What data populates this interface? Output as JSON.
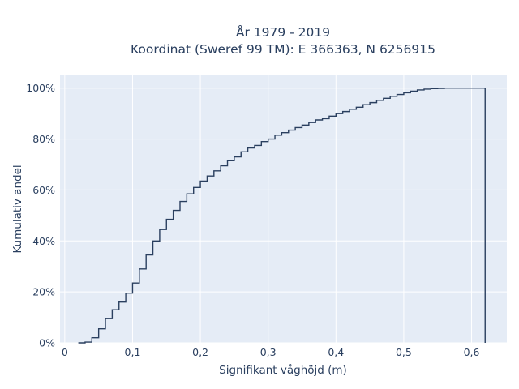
{
  "chart_data": {
    "type": "line",
    "title_lines": [
      "År 1979 - 2019",
      "Koordinat (Sweref 99 TM): E 366363, N 6256915"
    ],
    "xlabel": "Signifikant våghöjd (m)",
    "ylabel": "Kumulativ andel",
    "xlim": [
      -0.007,
      0.652
    ],
    "ylim": [
      0,
      105
    ],
    "xticks": [
      0,
      0.1,
      0.2,
      0.3,
      0.4,
      0.5,
      0.6
    ],
    "xtick_labels": [
      "0",
      "0,1",
      "0,2",
      "0,3",
      "0,4",
      "0,5",
      "0,6"
    ],
    "yticks": [
      0,
      20,
      40,
      60,
      80,
      100
    ],
    "ytick_labels": [
      "0%",
      "20%",
      "40%",
      "60%",
      "80%",
      "100%"
    ],
    "grid": true,
    "style": "step",
    "colors": {
      "line": "#2a3f5f",
      "plot_bg": "#e5ecf6",
      "grid": "#ffffff"
    },
    "series": [
      {
        "x": [
          0.02,
          0.03,
          0.04,
          0.05,
          0.06,
          0.07,
          0.08,
          0.09,
          0.1,
          0.11,
          0.12,
          0.13,
          0.14,
          0.15,
          0.16,
          0.17,
          0.18,
          0.19,
          0.2,
          0.21,
          0.22,
          0.23,
          0.24,
          0.25,
          0.26,
          0.27,
          0.28,
          0.29,
          0.3,
          0.31,
          0.32,
          0.33,
          0.34,
          0.35,
          0.36,
          0.37,
          0.38,
          0.39,
          0.4,
          0.41,
          0.42,
          0.43,
          0.44,
          0.45,
          0.46,
          0.47,
          0.48,
          0.49,
          0.5,
          0.51,
          0.52,
          0.53,
          0.54,
          0.55,
          0.56,
          0.57,
          0.58,
          0.59,
          0.6,
          0.62
        ],
        "y": [
          0,
          0.3,
          2,
          5.5,
          9.5,
          13,
          16,
          19.5,
          23.5,
          29,
          34.5,
          40,
          44.5,
          48.5,
          52,
          55.5,
          58.5,
          61,
          63.5,
          65.5,
          67.5,
          69.5,
          71.5,
          73,
          75,
          76.5,
          77.5,
          79,
          80,
          81.5,
          82.5,
          83.5,
          84.5,
          85.5,
          86.5,
          87.5,
          88,
          89,
          90,
          90.8,
          91.7,
          92.5,
          93.5,
          94.3,
          95.2,
          96,
          96.8,
          97.5,
          98.2,
          98.8,
          99.3,
          99.6,
          99.8,
          99.9,
          100,
          100,
          100,
          100,
          100,
          100
        ]
      }
    ]
  }
}
